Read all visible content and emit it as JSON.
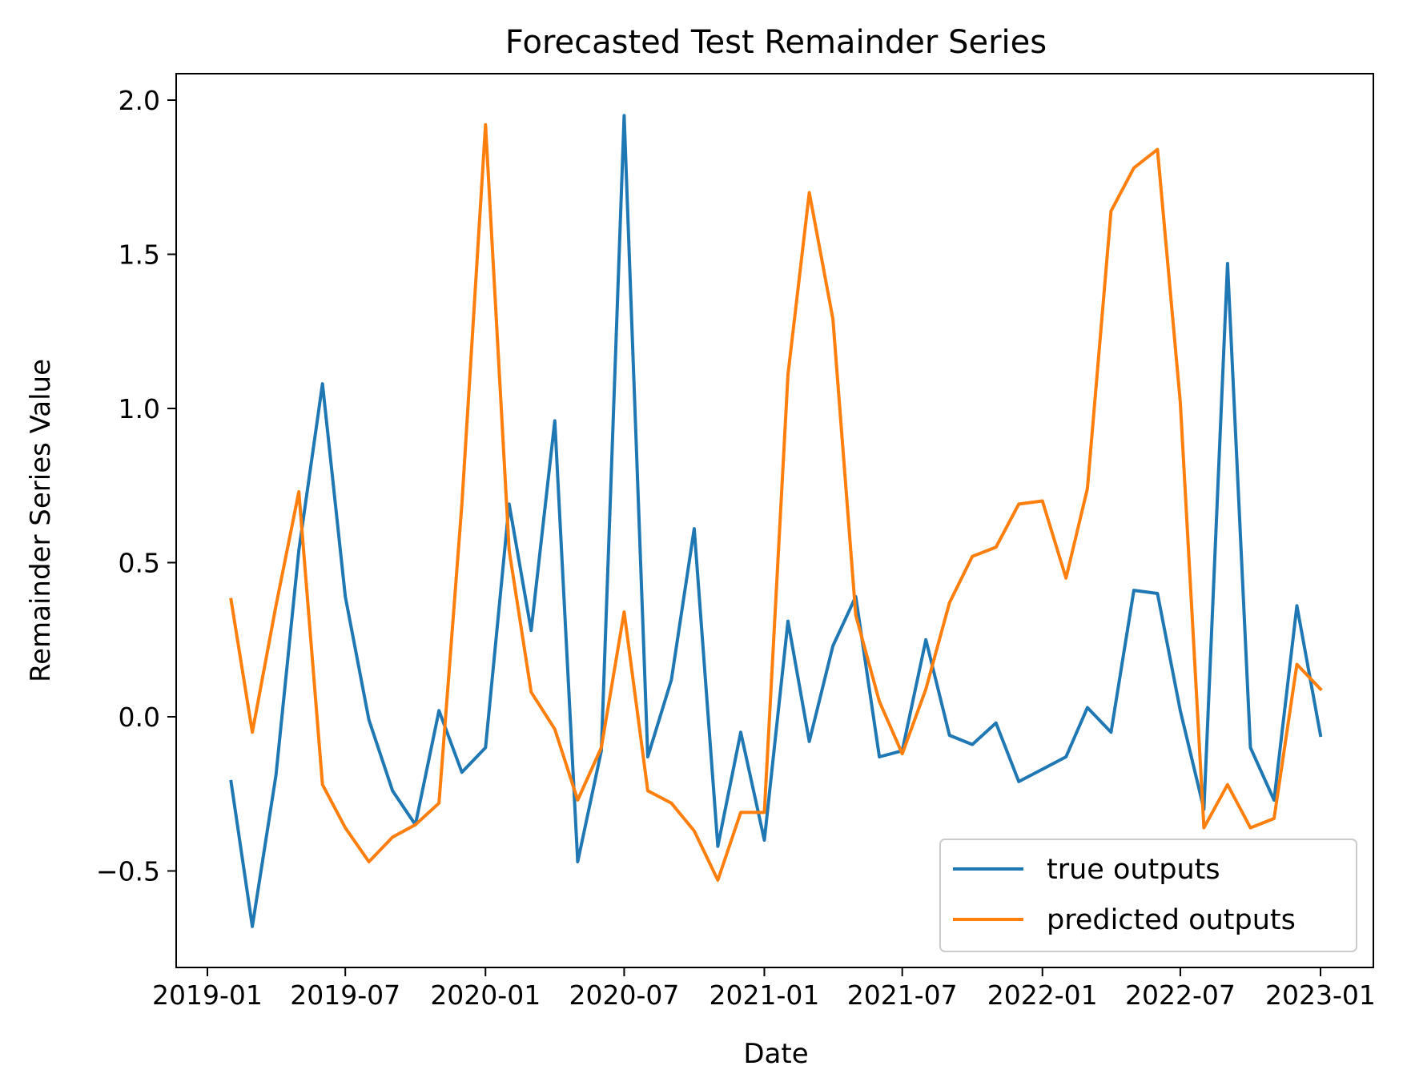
{
  "chart_data": {
    "type": "line",
    "title": "Forecasted Test Remainder Series",
    "xlabel": "Date",
    "ylabel": "Remainder Series Value",
    "grid": false,
    "legend_position": "bottom-right",
    "x_ticks": [
      "2019-01",
      "2019-07",
      "2020-01",
      "2020-07",
      "2021-01",
      "2021-07",
      "2022-01",
      "2022-07",
      "2023-01"
    ],
    "y_ticks": [
      "2.0",
      "1.5",
      "1.0",
      "0.5",
      "0.0",
      "−0.5"
    ],
    "ylim": [
      -0.81,
      2.08
    ],
    "x": [
      "2019-02",
      "2019-03",
      "2019-04",
      "2019-05",
      "2019-06",
      "2019-07",
      "2019-08",
      "2019-09",
      "2019-10",
      "2019-11",
      "2019-12",
      "2020-01",
      "2020-02",
      "2020-03",
      "2020-04",
      "2020-05",
      "2020-06",
      "2020-07",
      "2020-08",
      "2020-09",
      "2020-10",
      "2020-11",
      "2020-12",
      "2021-01",
      "2021-02",
      "2021-03",
      "2021-04",
      "2021-05",
      "2021-06",
      "2021-07",
      "2021-08",
      "2021-09",
      "2021-10",
      "2021-11",
      "2021-12",
      "2022-01",
      "2022-02",
      "2022-03",
      "2022-04",
      "2022-05",
      "2022-06",
      "2022-07",
      "2022-08",
      "2022-09",
      "2022-10",
      "2022-11",
      "2022-12",
      "2023-01"
    ],
    "series": [
      {
        "name": "true outputs",
        "color": "#1f77b4",
        "values": [
          -0.21,
          -0.68,
          -0.19,
          0.54,
          1.08,
          0.39,
          -0.01,
          -0.24,
          -0.35,
          0.02,
          -0.18,
          -0.1,
          0.69,
          0.28,
          0.96,
          -0.47,
          -0.11,
          1.95,
          -0.13,
          0.12,
          0.61,
          -0.42,
          -0.05,
          -0.4,
          0.31,
          -0.08,
          0.23,
          0.39,
          -0.13,
          -0.11,
          0.25,
          -0.06,
          -0.09,
          -0.02,
          -0.21,
          -0.17,
          -0.13,
          0.03,
          -0.05,
          0.41,
          0.4,
          0.02,
          -0.3,
          1.47,
          -0.1,
          -0.27,
          0.36,
          -0.06
        ]
      },
      {
        "name": "predicted outputs",
        "color": "#ff7f0e",
        "values": [
          0.38,
          -0.05,
          0.36,
          0.73,
          -0.22,
          -0.36,
          -0.47,
          -0.39,
          -0.35,
          -0.28,
          0.69,
          1.92,
          0.54,
          0.08,
          -0.04,
          -0.27,
          -0.1,
          0.34,
          -0.24,
          -0.28,
          -0.37,
          -0.53,
          -0.31,
          -0.31,
          1.11,
          1.7,
          1.29,
          0.33,
          0.05,
          -0.12,
          0.09,
          0.37,
          0.52,
          0.55,
          0.69,
          0.7,
          0.45,
          0.74,
          1.64,
          1.78,
          1.84,
          1.02,
          -0.36,
          -0.22,
          -0.36,
          -0.33,
          0.17,
          0.09
        ]
      }
    ]
  }
}
